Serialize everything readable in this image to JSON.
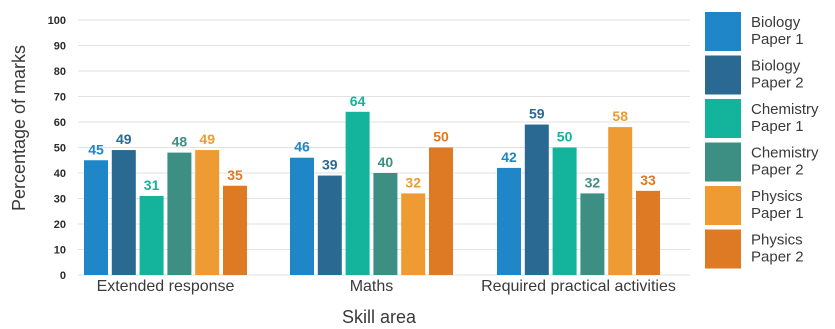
{
  "chart_data": {
    "type": "bar",
    "title": "",
    "xlabel": "Skill area",
    "ylabel": "Percentage of marks",
    "ylim": [
      0,
      100
    ],
    "yticks": [
      0,
      10,
      20,
      30,
      40,
      50,
      60,
      70,
      80,
      90,
      100
    ],
    "grid": true,
    "legend_position": "right",
    "categories": [
      "Extended response",
      "Maths",
      "Required practical activities"
    ],
    "series": [
      {
        "name": "Biology Paper 1",
        "name_lines": [
          "Biology",
          "Paper 1"
        ],
        "color": "#1f86c7",
        "values": [
          45,
          46,
          42
        ]
      },
      {
        "name": "Biology Paper 2",
        "name_lines": [
          "Biology",
          "Paper 2"
        ],
        "color": "#2a6a92",
        "values": [
          49,
          39,
          59
        ]
      },
      {
        "name": "Chemistry Paper 1",
        "name_lines": [
          "Chemistry",
          "Paper 1"
        ],
        "color": "#13b39c",
        "values": [
          31,
          64,
          50
        ]
      },
      {
        "name": "Chemistry Paper 2",
        "name_lines": [
          "Chemistry",
          "Paper 2"
        ],
        "color": "#3c8f82",
        "values": [
          48,
          40,
          32
        ]
      },
      {
        "name": "Physics Paper 1",
        "name_lines": [
          "Physics",
          "Paper 1"
        ],
        "color": "#ef9b33",
        "values": [
          49,
          32,
          58
        ]
      },
      {
        "name": "Physics Paper 2",
        "name_lines": [
          "Physics",
          "Paper 2"
        ],
        "color": "#de7a24",
        "values": [
          35,
          50,
          33
        ]
      }
    ]
  }
}
